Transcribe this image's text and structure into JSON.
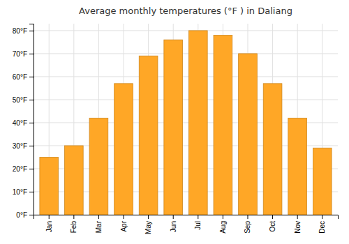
{
  "chart_data": {
    "type": "bar",
    "title": "Average monthly temperatures (°F ) in Daliang",
    "categories": [
      "Jan",
      "Feb",
      "Mar",
      "Apr",
      "May",
      "Jun",
      "Jul",
      "Aug",
      "Sep",
      "Oct",
      "Nov",
      "Dec"
    ],
    "values": [
      25,
      30,
      42,
      57,
      69,
      76,
      80,
      78,
      70,
      57,
      42,
      29
    ],
    "color": "#FFA726",
    "ylim": [
      0,
      83
    ],
    "yticks": [
      {
        "value": 0,
        "label": "0°F"
      },
      {
        "value": 10,
        "label": "10°F"
      },
      {
        "value": 20,
        "label": "20°F"
      },
      {
        "value": 30,
        "label": "30°F"
      },
      {
        "value": 40,
        "label": "40°F"
      },
      {
        "value": 50,
        "label": "50°F"
      },
      {
        "value": 60,
        "label": "60°F"
      },
      {
        "value": 70,
        "label": "70°F"
      },
      {
        "value": 80,
        "label": "80°F"
      }
    ],
    "grid": true
  }
}
